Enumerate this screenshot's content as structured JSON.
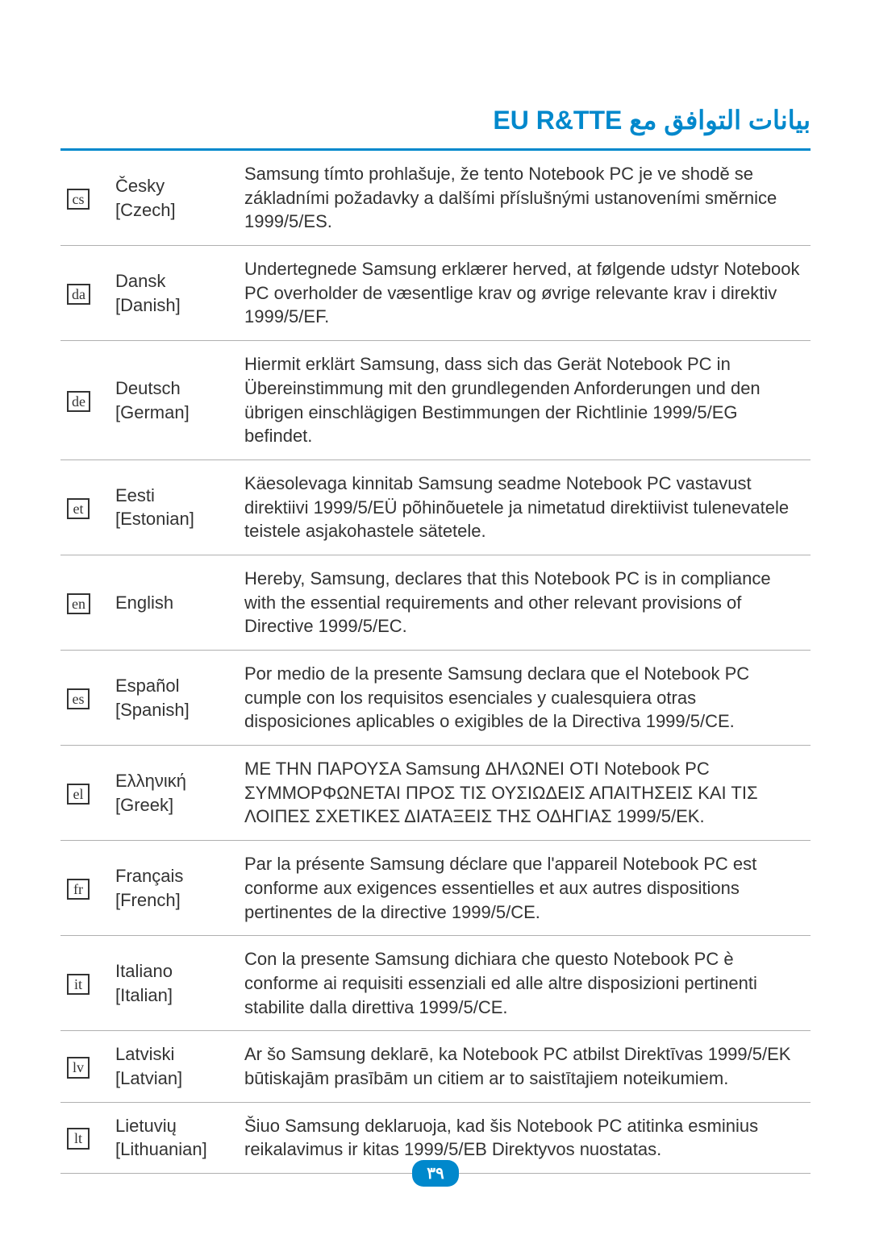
{
  "title": "بيانات التوافق مع EU R&TTE",
  "title_color": "#0088cc",
  "title_fontsize": 32,
  "rule_color": "#0088cc",
  "row_border_color": "#b0b0b0",
  "body_text_color": "#333333",
  "background_color": "#ffffff",
  "body_fontsize": 22,
  "page_number": "٣٩",
  "page_number_bg": "#0088cc",
  "page_number_fg": "#ffffff",
  "rows": [
    {
      "icon": "cs",
      "lang": "Česky\n[Czech]",
      "stmt": "Samsung tímto prohlašuje, že tento Notebook PC je ve shodě se základními požadavky a dalšími příslušnými ustanoveními směrnice 1999/5/ES."
    },
    {
      "icon": "da",
      "lang": "Dansk\n[Danish]",
      "stmt": "Undertegnede Samsung erklærer herved, at følgende udstyr Notebook PC overholder de væsentlige krav og øvrige relevante krav i direktiv 1999/5/EF."
    },
    {
      "icon": "de",
      "lang": "Deutsch\n[German]",
      "stmt": "Hiermit erklärt Samsung, dass sich das Gerät Notebook PC in Übereinstimmung mit den grundlegenden Anforderungen und den übrigen einschlägigen Bestimmungen der Richtlinie 1999/5/EG befindet."
    },
    {
      "icon": "et",
      "lang": "Eesti\n[Estonian]",
      "stmt": "Käesolevaga kinnitab Samsung seadme Notebook PC vastavust direktiivi 1999/5/EÜ põhinõuetele ja nimetatud direktiivist tulenevatele teistele asjakohastele sätetele."
    },
    {
      "icon": "en",
      "lang": "English",
      "stmt": "Hereby, Samsung, declares that this Notebook PC is in compliance with the essential requirements and other relevant provisions of Directive 1999/5/EC."
    },
    {
      "icon": "es",
      "lang": "Español\n[Spanish]",
      "stmt": "Por medio de la presente Samsung declara que el Notebook PC cumple con los requisitos esenciales y cualesquiera otras disposiciones aplicables o exigibles de la Directiva 1999/5/CE."
    },
    {
      "icon": "el",
      "lang": "Ελληνική\n[Greek]",
      "stmt": "ΜΕ ΤΗΝ ΠΑΡΟΥΣΑ Samsung ΔΗΛΩΝΕΙ ΟΤΙ Notebook PC ΣΥΜΜΟΡΦΩΝΕΤΑΙ ΠΡΟΣ ΤΙΣ ΟΥΣΙΩΔΕΙΣ ΑΠΑΙΤΗΣΕΙΣ ΚΑΙ ΤΙΣ ΛΟΙΠΕΣ ΣΧΕΤΙΚΕΣ ΔΙΑΤΑΞΕΙΣ ΤΗΣ ΟΔΗΓΙΑΣ 1999/5/ΕΚ."
    },
    {
      "icon": "fr",
      "lang": "Français\n[French]",
      "stmt": "Par la présente Samsung déclare que l'appareil Notebook PC est conforme aux exigences essentielles et aux autres dispositions pertinentes de la directive 1999/5/CE."
    },
    {
      "icon": "it",
      "lang": "Italiano\n[Italian]",
      "stmt": "Con la presente Samsung dichiara che questo Notebook PC è conforme ai requisiti essenziali ed alle altre disposizioni pertinenti stabilite dalla direttiva 1999/5/CE."
    },
    {
      "icon": "lv",
      "lang": "Latviski\n[Latvian]",
      "stmt": "Ar šo Samsung deklarē, ka Notebook PC atbilst Direktīvas 1999/5/EK būtiskajām prasībām un citiem ar to saistītajiem noteikumiem."
    },
    {
      "icon": "lt",
      "lang": "Lietuvių\n[Lithuanian]",
      "stmt": "Šiuo Samsung deklaruoja, kad šis Notebook PC atitinka esminius reikalavimus ir kitas 1999/5/EB Direktyvos nuostatas."
    }
  ]
}
